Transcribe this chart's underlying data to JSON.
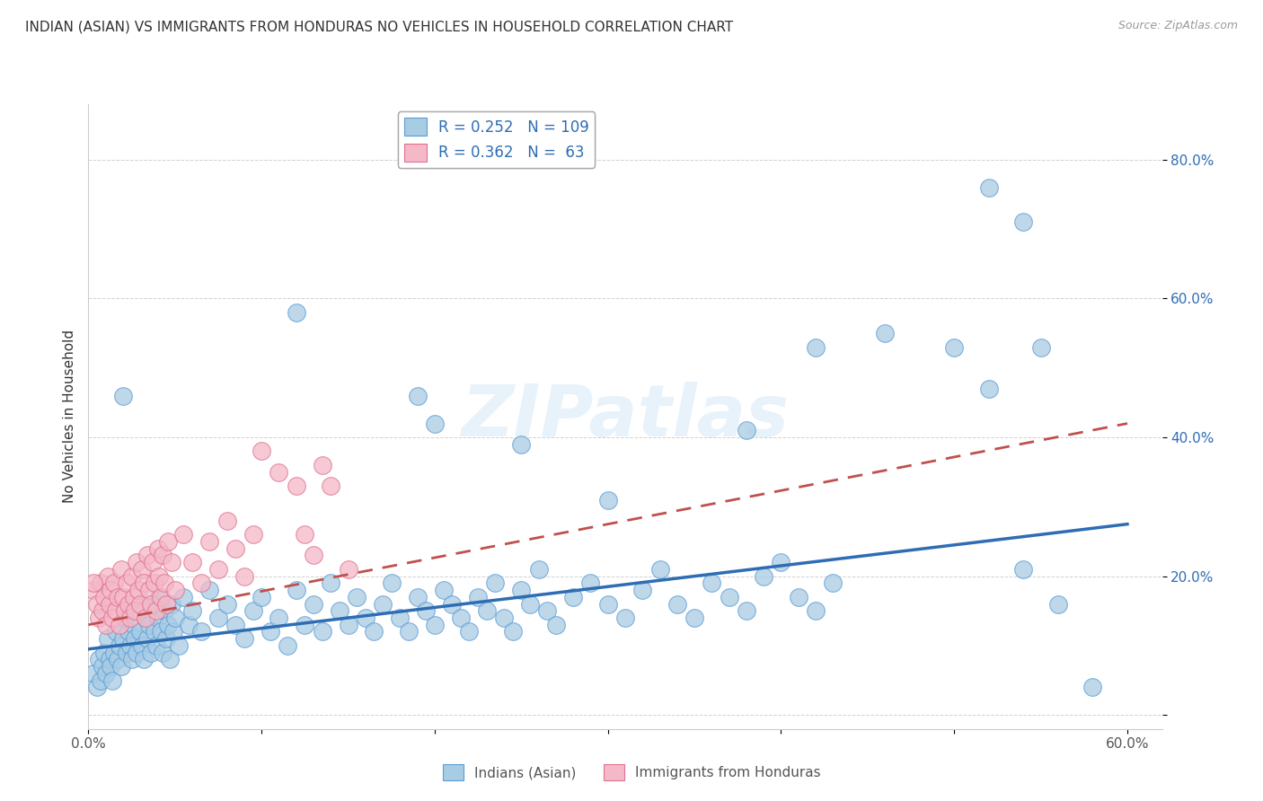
{
  "title": "INDIAN (ASIAN) VS IMMIGRANTS FROM HONDURAS NO VEHICLES IN HOUSEHOLD CORRELATION CHART",
  "source": "Source: ZipAtlas.com",
  "ylabel": "No Vehicles in Household",
  "xlim": [
    0.0,
    0.62
  ],
  "ylim": [
    -0.02,
    0.88
  ],
  "xtick_pos": [
    0.0,
    0.1,
    0.2,
    0.3,
    0.4,
    0.5,
    0.6
  ],
  "xtick_labels": [
    "0.0%",
    "",
    "",
    "",
    "",
    "",
    "60.0%"
  ],
  "ytick_pos": [
    0.0,
    0.2,
    0.4,
    0.6,
    0.8
  ],
  "ytick_labels": [
    "",
    "20.0%",
    "40.0%",
    "60.0%",
    "80.0%"
  ],
  "legend_labels_bottom": [
    "Indians (Asian)",
    "Immigrants from Honduras"
  ],
  "blue_color": "#a8cce4",
  "blue_edge_color": "#5b9bd5",
  "pink_color": "#f4b8c8",
  "pink_edge_color": "#e07090",
  "blue_line_color": "#2e6db4",
  "pink_line_color": "#c0504d",
  "watermark": "ZIPatlas",
  "blue_scatter": [
    [
      0.003,
      0.06
    ],
    [
      0.005,
      0.04
    ],
    [
      0.006,
      0.08
    ],
    [
      0.007,
      0.05
    ],
    [
      0.008,
      0.07
    ],
    [
      0.009,
      0.09
    ],
    [
      0.01,
      0.06
    ],
    [
      0.011,
      0.11
    ],
    [
      0.012,
      0.08
    ],
    [
      0.013,
      0.07
    ],
    [
      0.014,
      0.05
    ],
    [
      0.015,
      0.09
    ],
    [
      0.016,
      0.12
    ],
    [
      0.017,
      0.08
    ],
    [
      0.018,
      0.1
    ],
    [
      0.019,
      0.07
    ],
    [
      0.02,
      0.11
    ],
    [
      0.021,
      0.14
    ],
    [
      0.022,
      0.09
    ],
    [
      0.023,
      0.12
    ],
    [
      0.024,
      0.1
    ],
    [
      0.025,
      0.08
    ],
    [
      0.026,
      0.13
    ],
    [
      0.027,
      0.11
    ],
    [
      0.028,
      0.09
    ],
    [
      0.029,
      0.15
    ],
    [
      0.03,
      0.12
    ],
    [
      0.031,
      0.1
    ],
    [
      0.032,
      0.08
    ],
    [
      0.033,
      0.14
    ],
    [
      0.034,
      0.11
    ],
    [
      0.035,
      0.13
    ],
    [
      0.036,
      0.09
    ],
    [
      0.037,
      0.16
    ],
    [
      0.038,
      0.12
    ],
    [
      0.039,
      0.1
    ],
    [
      0.04,
      0.14
    ],
    [
      0.041,
      0.17
    ],
    [
      0.042,
      0.12
    ],
    [
      0.043,
      0.09
    ],
    [
      0.044,
      0.15
    ],
    [
      0.045,
      0.11
    ],
    [
      0.046,
      0.13
    ],
    [
      0.047,
      0.08
    ],
    [
      0.048,
      0.16
    ],
    [
      0.049,
      0.12
    ],
    [
      0.05,
      0.14
    ],
    [
      0.052,
      0.1
    ],
    [
      0.055,
      0.17
    ],
    [
      0.058,
      0.13
    ],
    [
      0.06,
      0.15
    ],
    [
      0.065,
      0.12
    ],
    [
      0.07,
      0.18
    ],
    [
      0.075,
      0.14
    ],
    [
      0.08,
      0.16
    ],
    [
      0.085,
      0.13
    ],
    [
      0.09,
      0.11
    ],
    [
      0.095,
      0.15
    ],
    [
      0.1,
      0.17
    ],
    [
      0.105,
      0.12
    ],
    [
      0.11,
      0.14
    ],
    [
      0.115,
      0.1
    ],
    [
      0.12,
      0.18
    ],
    [
      0.125,
      0.13
    ],
    [
      0.13,
      0.16
    ],
    [
      0.135,
      0.12
    ],
    [
      0.14,
      0.19
    ],
    [
      0.145,
      0.15
    ],
    [
      0.15,
      0.13
    ],
    [
      0.155,
      0.17
    ],
    [
      0.16,
      0.14
    ],
    [
      0.165,
      0.12
    ],
    [
      0.17,
      0.16
    ],
    [
      0.175,
      0.19
    ],
    [
      0.18,
      0.14
    ],
    [
      0.185,
      0.12
    ],
    [
      0.19,
      0.17
    ],
    [
      0.195,
      0.15
    ],
    [
      0.2,
      0.13
    ],
    [
      0.205,
      0.18
    ],
    [
      0.21,
      0.16
    ],
    [
      0.215,
      0.14
    ],
    [
      0.22,
      0.12
    ],
    [
      0.225,
      0.17
    ],
    [
      0.23,
      0.15
    ],
    [
      0.235,
      0.19
    ],
    [
      0.24,
      0.14
    ],
    [
      0.245,
      0.12
    ],
    [
      0.25,
      0.18
    ],
    [
      0.255,
      0.16
    ],
    [
      0.26,
      0.21
    ],
    [
      0.265,
      0.15
    ],
    [
      0.27,
      0.13
    ],
    [
      0.28,
      0.17
    ],
    [
      0.29,
      0.19
    ],
    [
      0.3,
      0.16
    ],
    [
      0.31,
      0.14
    ],
    [
      0.32,
      0.18
    ],
    [
      0.33,
      0.21
    ],
    [
      0.34,
      0.16
    ],
    [
      0.35,
      0.14
    ],
    [
      0.36,
      0.19
    ],
    [
      0.37,
      0.17
    ],
    [
      0.38,
      0.15
    ],
    [
      0.39,
      0.2
    ],
    [
      0.4,
      0.22
    ],
    [
      0.41,
      0.17
    ],
    [
      0.42,
      0.15
    ],
    [
      0.43,
      0.19
    ],
    [
      0.19,
      0.46
    ],
    [
      0.2,
      0.42
    ],
    [
      0.25,
      0.39
    ],
    [
      0.3,
      0.31
    ],
    [
      0.12,
      0.58
    ],
    [
      0.38,
      0.41
    ],
    [
      0.42,
      0.53
    ],
    [
      0.46,
      0.55
    ],
    [
      0.5,
      0.53
    ],
    [
      0.52,
      0.47
    ],
    [
      0.54,
      0.21
    ],
    [
      0.02,
      0.46
    ],
    [
      0.52,
      0.76
    ],
    [
      0.54,
      0.71
    ],
    [
      0.55,
      0.53
    ],
    [
      0.56,
      0.16
    ],
    [
      0.58,
      0.04
    ]
  ],
  "pink_scatter": [
    [
      0.003,
      0.18
    ],
    [
      0.005,
      0.16
    ],
    [
      0.006,
      0.14
    ],
    [
      0.007,
      0.19
    ],
    [
      0.008,
      0.15
    ],
    [
      0.009,
      0.17
    ],
    [
      0.01,
      0.13
    ],
    [
      0.011,
      0.2
    ],
    [
      0.012,
      0.16
    ],
    [
      0.013,
      0.18
    ],
    [
      0.014,
      0.14
    ],
    [
      0.015,
      0.19
    ],
    [
      0.016,
      0.15
    ],
    [
      0.017,
      0.17
    ],
    [
      0.018,
      0.13
    ],
    [
      0.019,
      0.21
    ],
    [
      0.02,
      0.17
    ],
    [
      0.021,
      0.15
    ],
    [
      0.022,
      0.19
    ],
    [
      0.023,
      0.16
    ],
    [
      0.024,
      0.14
    ],
    [
      0.025,
      0.2
    ],
    [
      0.026,
      0.17
    ],
    [
      0.027,
      0.15
    ],
    [
      0.028,
      0.22
    ],
    [
      0.029,
      0.18
    ],
    [
      0.03,
      0.16
    ],
    [
      0.031,
      0.21
    ],
    [
      0.032,
      0.19
    ],
    [
      0.033,
      0.14
    ],
    [
      0.034,
      0.23
    ],
    [
      0.035,
      0.18
    ],
    [
      0.036,
      0.16
    ],
    [
      0.037,
      0.22
    ],
    [
      0.038,
      0.19
    ],
    [
      0.039,
      0.15
    ],
    [
      0.04,
      0.24
    ],
    [
      0.041,
      0.2
    ],
    [
      0.042,
      0.17
    ],
    [
      0.043,
      0.23
    ],
    [
      0.044,
      0.19
    ],
    [
      0.045,
      0.16
    ],
    [
      0.046,
      0.25
    ],
    [
      0.048,
      0.22
    ],
    [
      0.05,
      0.18
    ],
    [
      0.055,
      0.26
    ],
    [
      0.06,
      0.22
    ],
    [
      0.065,
      0.19
    ],
    [
      0.07,
      0.25
    ],
    [
      0.075,
      0.21
    ],
    [
      0.08,
      0.28
    ],
    [
      0.085,
      0.24
    ],
    [
      0.09,
      0.2
    ],
    [
      0.095,
      0.26
    ],
    [
      0.1,
      0.38
    ],
    [
      0.11,
      0.35
    ],
    [
      0.12,
      0.33
    ],
    [
      0.125,
      0.26
    ],
    [
      0.13,
      0.23
    ],
    [
      0.135,
      0.36
    ],
    [
      0.14,
      0.33
    ],
    [
      0.15,
      0.21
    ],
    [
      0.003,
      0.19
    ]
  ],
  "blue_line": [
    [
      0.0,
      0.095
    ],
    [
      0.6,
      0.275
    ]
  ],
  "pink_line": [
    [
      0.0,
      0.13
    ],
    [
      0.6,
      0.42
    ]
  ]
}
